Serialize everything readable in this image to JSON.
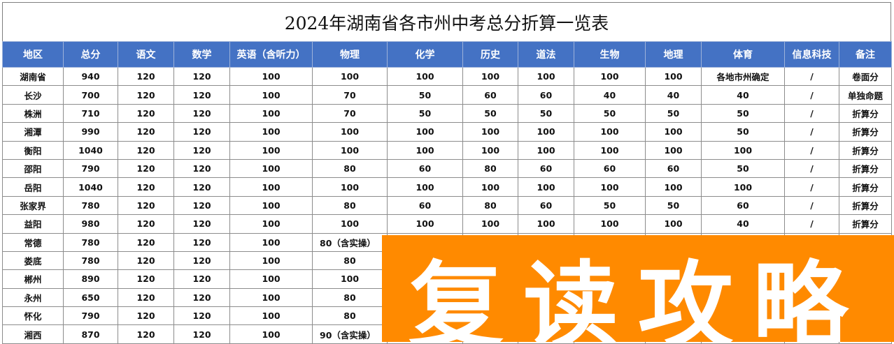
{
  "title": "2024年湖南省各市州中考总分折算一览表",
  "headers": [
    "地区",
    "总分",
    "语文",
    "数学",
    "英语（含听力）",
    "物理",
    "化学",
    "历史",
    "道法",
    "生物",
    "地理",
    "体育",
    "信息科技",
    "备注"
  ],
  "rows": [
    [
      "湖南省",
      "940",
      "120",
      "120",
      "100",
      "100",
      "100",
      "100",
      "100",
      "100",
      "100",
      "各地市州确定",
      "/",
      "卷面分"
    ],
    [
      "长沙",
      "700",
      "120",
      "120",
      "100",
      "70",
      "50",
      "60",
      "60",
      "40",
      "40",
      "40",
      "/",
      "单独命题"
    ],
    [
      "株洲",
      "710",
      "120",
      "120",
      "100",
      "70",
      "50",
      "50",
      "50",
      "50",
      "50",
      "50",
      "/",
      "折算分"
    ],
    [
      "湘潭",
      "990",
      "120",
      "120",
      "100",
      "100",
      "100",
      "100",
      "100",
      "100",
      "100",
      "50",
      "/",
      "折算分"
    ],
    [
      "衡阳",
      "1040",
      "120",
      "120",
      "100",
      "100",
      "100",
      "100",
      "100",
      "100",
      "100",
      "100",
      "/",
      "折算分"
    ],
    [
      "邵阳",
      "790",
      "120",
      "120",
      "100",
      "80",
      "60",
      "80",
      "60",
      "60",
      "60",
      "50",
      "/",
      "折算分"
    ],
    [
      "岳阳",
      "1040",
      "120",
      "120",
      "100",
      "100",
      "100",
      "100",
      "100",
      "100",
      "100",
      "100",
      "/",
      "折算分"
    ],
    [
      "张家界",
      "780",
      "120",
      "120",
      "100",
      "80",
      "60",
      "80",
      "60",
      "50",
      "50",
      "60",
      "/",
      "折算分"
    ],
    [
      "益阳",
      "980",
      "120",
      "120",
      "100",
      "100",
      "100",
      "100",
      "100",
      "100",
      "100",
      "40",
      "/",
      "折算分"
    ],
    [
      "常德",
      "780",
      "120",
      "120",
      "100",
      "80（含实操）",
      "",
      "",
      "",
      "",
      "",
      "",
      "",
      ""
    ],
    [
      "娄底",
      "780",
      "120",
      "120",
      "100",
      "80",
      "",
      "",
      "",
      "",
      "",
      "",
      "",
      ""
    ],
    [
      "郴州",
      "890",
      "120",
      "120",
      "100",
      "100",
      "",
      "",
      "",
      "",
      "",
      "",
      "",
      ""
    ],
    [
      "永州",
      "650",
      "120",
      "120",
      "100",
      "80",
      "",
      "",
      "",
      "",
      "",
      "",
      "",
      ""
    ],
    [
      "怀化",
      "790",
      "120",
      "120",
      "100",
      "80",
      "",
      "",
      "",
      "",
      "",
      "",
      "",
      ""
    ],
    [
      "湘西",
      "870",
      "120",
      "120",
      "100",
      "90（含实操）",
      "",
      "",
      "",
      "",
      "",
      "",
      "",
      ""
    ]
  ],
  "watermark": "复读攻略",
  "colors": {
    "header_bg": "#4472c4",
    "watermark_bg": "#ff8a00"
  }
}
